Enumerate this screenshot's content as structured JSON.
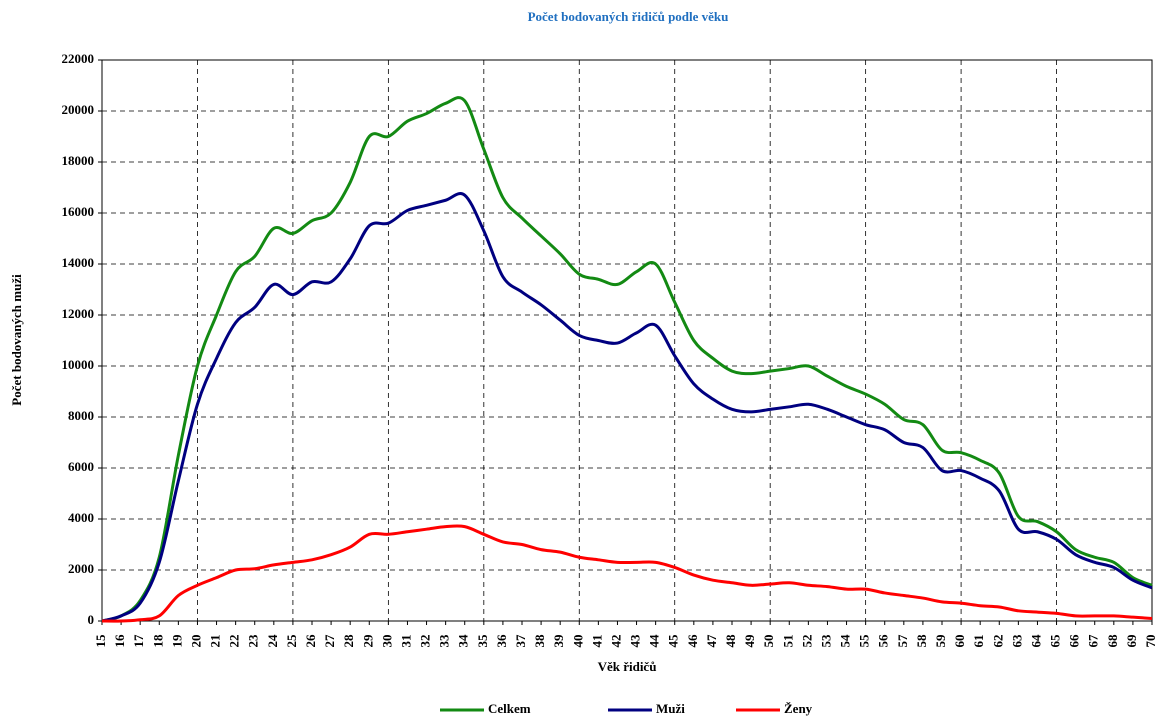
{
  "chart_data": {
    "type": "line",
    "title": "Počet bodovaných řidičů podle věku",
    "xlabel": "Věk řidičů",
    "ylabel": "Počet bodovaných muži",
    "x": [
      15,
      16,
      17,
      18,
      19,
      20,
      21,
      22,
      23,
      24,
      25,
      26,
      27,
      28,
      29,
      30,
      31,
      32,
      33,
      34,
      35,
      36,
      37,
      38,
      39,
      40,
      41,
      42,
      43,
      44,
      45,
      46,
      47,
      48,
      49,
      50,
      51,
      52,
      53,
      54,
      55,
      56,
      57,
      58,
      59,
      60,
      61,
      62,
      63,
      64,
      65,
      66,
      67,
      68,
      69,
      70
    ],
    "xlim": [
      15,
      70
    ],
    "xticks": [
      15,
      16,
      17,
      18,
      19,
      20,
      21,
      22,
      23,
      24,
      25,
      26,
      27,
      28,
      29,
      30,
      31,
      32,
      33,
      34,
      35,
      36,
      37,
      38,
      39,
      40,
      41,
      42,
      43,
      44,
      45,
      46,
      47,
      48,
      49,
      50,
      51,
      52,
      53,
      54,
      55,
      56,
      57,
      58,
      59,
      60,
      61,
      62,
      63,
      64,
      65,
      66,
      67,
      68,
      69,
      70
    ],
    "ylim": [
      0,
      22000
    ],
    "yticks": [
      0,
      2000,
      4000,
      6000,
      8000,
      10000,
      12000,
      14000,
      16000,
      18000,
      20000,
      22000
    ],
    "grid": true,
    "legend": "bottom",
    "series": [
      {
        "name": "Celkem",
        "color": "#138a13",
        "values": [
          0,
          200,
          800,
          2500,
          6500,
          10000,
          12000,
          13700,
          14300,
          15400,
          15200,
          15700,
          16000,
          17200,
          19000,
          19000,
          19600,
          19900,
          20300,
          20400,
          18500,
          16600,
          15800,
          15100,
          14400,
          13600,
          13400,
          13200,
          13700,
          14000,
          12500,
          11000,
          10300,
          9800,
          9700,
          9800,
          9900,
          10000,
          9600,
          9200,
          8900,
          8500,
          7900,
          7700,
          6700,
          6600,
          6300,
          5800,
          4100,
          3900,
          3500,
          2800,
          2500,
          2300,
          1700,
          1400
        ]
      },
      {
        "name": "Muži",
        "color": "#000080",
        "values": [
          0,
          200,
          700,
          2300,
          5500,
          8500,
          10300,
          11700,
          12300,
          13200,
          12800,
          13300,
          13300,
          14200,
          15500,
          15600,
          16100,
          16300,
          16500,
          16700,
          15300,
          13500,
          12900,
          12400,
          11800,
          11200,
          11000,
          10900,
          11300,
          11600,
          10400,
          9300,
          8700,
          8300,
          8200,
          8300,
          8400,
          8500,
          8300,
          8000,
          7700,
          7500,
          7000,
          6800,
          5900,
          5900,
          5600,
          5100,
          3600,
          3500,
          3200,
          2600,
          2300,
          2100,
          1600,
          1300
        ]
      },
      {
        "name": "Ženy",
        "color": "#ff0000",
        "values": [
          0,
          0,
          50,
          200,
          1000,
          1400,
          1700,
          2000,
          2050,
          2200,
          2300,
          2400,
          2600,
          2900,
          3400,
          3400,
          3500,
          3600,
          3700,
          3700,
          3400,
          3100,
          3000,
          2800,
          2700,
          2500,
          2400,
          2300,
          2300,
          2300,
          2100,
          1800,
          1600,
          1500,
          1400,
          1450,
          1500,
          1400,
          1350,
          1250,
          1250,
          1100,
          1000,
          900,
          750,
          700,
          600,
          550,
          400,
          350,
          300,
          200,
          200,
          200,
          150,
          100
        ]
      }
    ]
  }
}
